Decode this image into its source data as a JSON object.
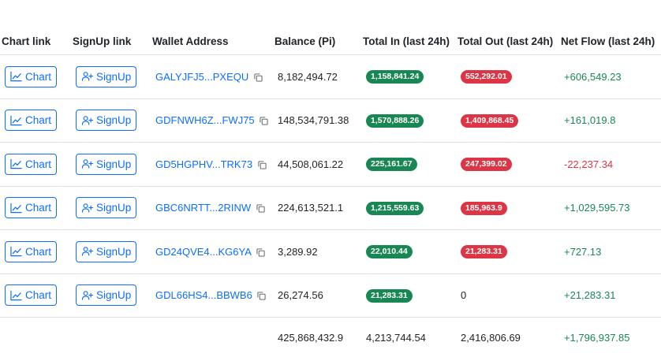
{
  "table": {
    "headers": {
      "chart": "Chart link",
      "signup": "SignUp link",
      "wallet": "Wallet Address",
      "balance": "Balance (Pi)",
      "total_in": "Total In (last 24h)",
      "total_out": "Total Out (last 24h)",
      "net_flow": "Net Flow (last 24h)"
    },
    "chart_button_label": "Chart",
    "signup_button_label": "SignUp",
    "rows": [
      {
        "wallet": "GALYJFJ5...PXEQU",
        "balance": "8,182,494.72",
        "total_in": "1,158,841.24",
        "total_out": "552,292.01",
        "net_flow": "+606,549.23",
        "net_sign": "positive"
      },
      {
        "wallet": "GDFNWH6Z...FWJ75",
        "balance": "148,534,791.38",
        "total_in": "1,570,888.26",
        "total_out": "1,409,868.45",
        "net_flow": "+161,019.8",
        "net_sign": "positive"
      },
      {
        "wallet": "GD5HGPHV...TRK73",
        "balance": "44,508,061.22",
        "total_in": "225,161.67",
        "total_out": "247,399.02",
        "net_flow": "-22,237.34",
        "net_sign": "negative"
      },
      {
        "wallet": "GBC6NRTT...2RINW",
        "balance": "224,613,521.1",
        "total_in": "1,215,559.63",
        "total_out": "185,963.9",
        "net_flow": "+1,029,595.73",
        "net_sign": "positive"
      },
      {
        "wallet": "GD24QVE4...KG6YA",
        "balance": "3,289.92",
        "total_in": "22,010.44",
        "total_out": "21,283.31",
        "net_flow": "+727.13",
        "net_sign": "positive"
      },
      {
        "wallet": "GDL66HS4...BBWB6",
        "balance": "26,274.56",
        "total_in": "21,283.31",
        "total_out": "0",
        "net_flow": "+21,283.31",
        "net_sign": "positive"
      }
    ],
    "totals": {
      "balance": "425,868,432.9",
      "total_in": "4,213,744.54",
      "total_out": "2,416,806.69",
      "net_flow": "+1,796,937.85"
    }
  },
  "colors": {
    "link": "#0d6efd",
    "positive": "#198754",
    "negative": "#dc3545",
    "border": "#dee2e6"
  },
  "icons": {
    "chart_button": "chart-line-icon",
    "signup_button": "person-plus-icon",
    "copy": "copy-icon"
  }
}
